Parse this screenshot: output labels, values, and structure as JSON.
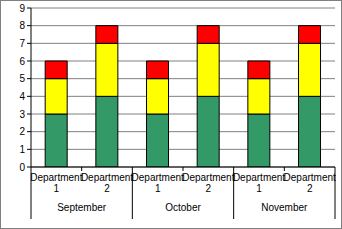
{
  "chart_data": {
    "type": "bar",
    "stacked": true,
    "categories": [
      "Department 1",
      "Department 2",
      "Department 1",
      "Department 2",
      "Department 1",
      "Department 2"
    ],
    "category_groups": [
      "September",
      "October",
      "November"
    ],
    "series": [
      {
        "color": "#339966",
        "values": [
          3,
          4,
          3,
          4,
          3,
          4
        ]
      },
      {
        "color": "#ffff00",
        "values": [
          2,
          3,
          2,
          3,
          2,
          3
        ]
      },
      {
        "color": "#ff0000",
        "values": [
          1,
          1,
          1,
          1,
          1,
          1
        ]
      }
    ],
    "ylim": [
      0,
      9
    ],
    "yticks": [
      0,
      1,
      2,
      3,
      4,
      5,
      6,
      7,
      8,
      9
    ],
    "grid": true
  }
}
